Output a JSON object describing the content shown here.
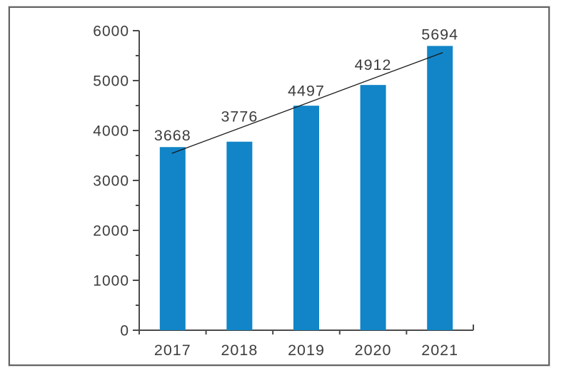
{
  "chart_data": {
    "type": "bar",
    "title": "",
    "categories": [
      "2017",
      "2018",
      "2019",
      "2020",
      "2021"
    ],
    "values": [
      3668,
      3776,
      4497,
      4912,
      5694
    ],
    "data_labels": [
      "3668",
      "3776",
      "4497",
      "4912",
      "5694"
    ],
    "ytick_labels": [
      "0",
      "1000",
      "2000",
      "3000",
      "4000",
      "5000",
      "6000"
    ],
    "ylim": [
      0,
      6000
    ],
    "ytick_step": 1000,
    "yminor_step": 500,
    "xlabel": "",
    "ylabel": "",
    "grid": false,
    "legend_position": "none",
    "trendline": true,
    "colors": {
      "bar": "#1185C7",
      "trendline": "#1a1a1a",
      "axis": "#4a4a4a",
      "text": "#3d3d3d",
      "frame_border": "#636363",
      "background": "#ffffff"
    }
  }
}
